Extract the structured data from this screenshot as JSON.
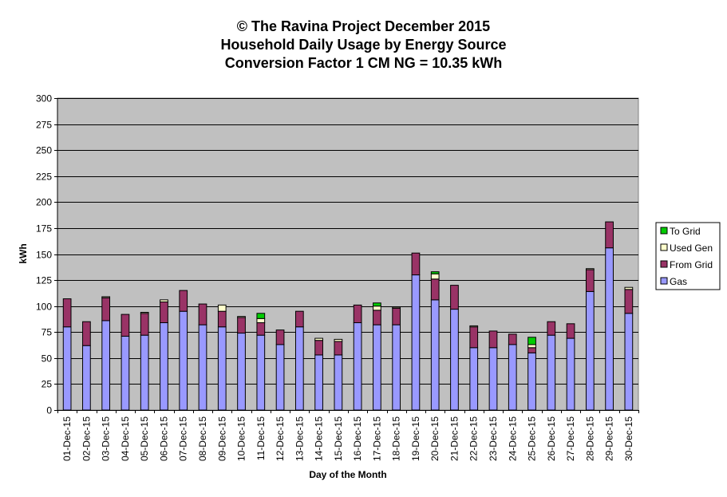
{
  "chart_data": {
    "type": "bar",
    "stacked": true,
    "title": "© The Ravina Project December 2015",
    "subtitle_lines": [
      "Household Daily Usage by Energy Source",
      "Conversion Factor 1 CM NG = 10.35 kWh"
    ],
    "xlabel": "Day of the Month",
    "ylabel": "kWh",
    "ylim": [
      0,
      300
    ],
    "yticks": [
      0,
      25,
      50,
      75,
      100,
      125,
      150,
      175,
      200,
      225,
      250,
      275,
      300
    ],
    "grid": true,
    "legend_position": "right",
    "categories": [
      "01-Dec-15",
      "02-Dec-15",
      "03-Dec-15",
      "04-Dec-15",
      "05-Dec-15",
      "06-Dec-15",
      "07-Dec-15",
      "08-Dec-15",
      "09-Dec-15",
      "10-Dec-15",
      "11-Dec-15",
      "12-Dec-15",
      "13-Dec-15",
      "14-Dec-15",
      "15-Dec-15",
      "16-Dec-15",
      "17-Dec-15",
      "18-Dec-15",
      "19-Dec-15",
      "20-Dec-15",
      "21-Dec-15",
      "22-Dec-15",
      "23-Dec-15",
      "24-Dec-15",
      "25-Dec-15",
      "26-Dec-15",
      "27-Dec-15",
      "28-Dec-15",
      "29-Dec-15",
      "30-Dec-15"
    ],
    "series": [
      {
        "name": "Gas",
        "color": "#9999ff",
        "values": [
          80,
          62,
          86,
          71,
          72,
          84,
          95,
          82,
          80,
          74,
          72,
          63,
          80,
          53,
          53,
          84,
          82,
          82,
          130,
          106,
          97,
          60,
          60,
          63,
          55,
          72,
          69,
          114,
          156,
          93
        ]
      },
      {
        "name": "From Grid",
        "color": "#993366",
        "values": [
          27,
          23,
          22,
          21,
          21,
          20,
          20,
          20,
          15,
          15,
          12,
          14,
          15,
          14,
          13,
          17,
          14,
          16,
          21,
          20,
          23,
          20,
          16,
          10,
          5,
          13,
          14,
          21,
          25,
          23
        ]
      },
      {
        "name": "Used Gen",
        "color": "#ffffcc",
        "values": [
          0,
          0,
          1,
          0,
          1,
          2,
          0,
          0,
          6,
          1,
          4,
          0,
          0,
          2,
          2,
          0,
          4,
          1,
          0,
          5,
          0,
          1,
          0,
          0,
          3,
          0,
          0,
          1,
          0,
          2
        ]
      },
      {
        "name": "To Grid",
        "color": "#00cc00",
        "values": [
          0,
          0,
          0,
          0,
          0,
          0,
          0,
          0,
          0,
          0,
          5,
          0,
          0,
          0,
          0,
          0,
          3,
          0,
          0,
          2,
          0,
          0,
          0,
          0,
          7,
          0,
          0,
          0,
          0,
          0
        ]
      }
    ],
    "colors": {
      "plot_background": "#c0c0c0",
      "gridline": "#000000"
    }
  }
}
